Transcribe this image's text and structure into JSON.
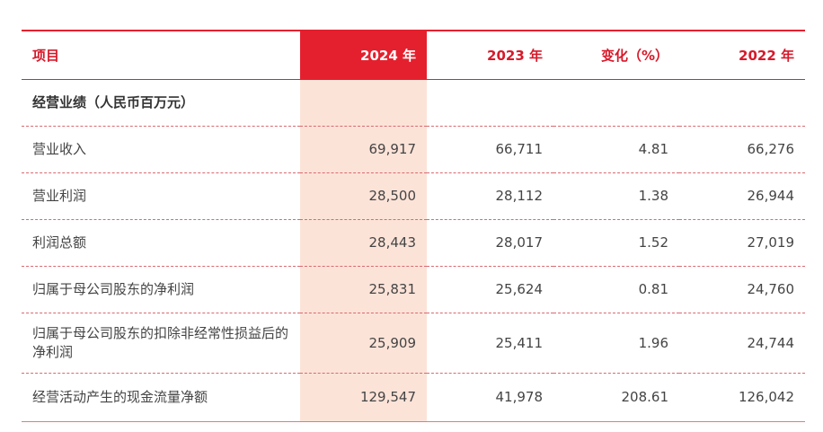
{
  "table": {
    "headers": {
      "item": "项目",
      "y2024": "2024 年",
      "y2023": "2023 年",
      "change": "变化（%）",
      "y2022": "2022 年"
    },
    "section_title": "经营业绩（人民币百万元）",
    "rows": [
      {
        "item": "营业收入",
        "y2024": "69,917",
        "y2023": "66,711",
        "change": "4.81",
        "y2022": "66,276"
      },
      {
        "item": "营业利润",
        "y2024": "28,500",
        "y2023": "28,112",
        "change": "1.38",
        "y2022": "26,944"
      },
      {
        "item": "利润总额",
        "y2024": "28,443",
        "y2023": "28,017",
        "change": "1.52",
        "y2022": "27,019"
      },
      {
        "item": "归属于母公司股东的净利润",
        "y2024": "25,831",
        "y2023": "25,624",
        "change": "0.81",
        "y2022": "24,760"
      },
      {
        "item": "归属于母公司股东的扣除非经常性损益后的净利润",
        "y2024": "25,909",
        "y2023": "25,411",
        "change": "1.96",
        "y2022": "24,744"
      },
      {
        "item": "经营活动产生的现金流量净额",
        "y2024": "129,547",
        "y2023": "41,978",
        "change": "208.61",
        "y2022": "126,042"
      }
    ]
  },
  "colors": {
    "accent": "#e5202e",
    "highlight_column": "#fce3d8",
    "header_text": "#d7192a"
  }
}
